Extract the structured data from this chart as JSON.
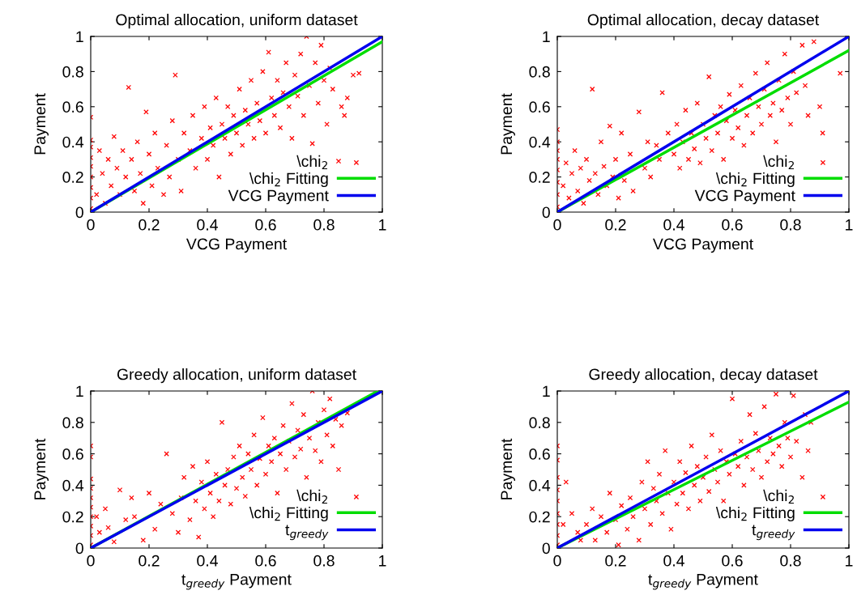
{
  "chart_data": [
    {
      "type": "scatter",
      "title": "Optimal allocation, uniform dataset",
      "xlabel": "VCG Payment",
      "ylabel": "Payment",
      "xlim": [
        0,
        1
      ],
      "ylim": [
        0,
        1
      ],
      "xticks": [
        0,
        0.2,
        0.4,
        0.6,
        0.8,
        1
      ],
      "yticks": [
        0,
        0.2,
        0.4,
        0.6,
        0.8,
        1
      ],
      "grid": false,
      "legend": "bottom right",
      "series": [
        {
          "type": "scatter",
          "name": "\\chi$_{2}$",
          "color": "#ff0000",
          "marker": "cross",
          "x": [
            0,
            0,
            0,
            0,
            0,
            0,
            0,
            0,
            0,
            0.02,
            0.03,
            0.04,
            0.05,
            0.06,
            0.07,
            0.08,
            0.09,
            0.1,
            0.11,
            0.12,
            0.13,
            0.14,
            0.15,
            0.16,
            0.17,
            0.18,
            0.19,
            0.2,
            0.21,
            0.22,
            0.23,
            0.25,
            0.26,
            0.27,
            0.28,
            0.29,
            0.3,
            0.31,
            0.32,
            0.34,
            0.35,
            0.36,
            0.38,
            0.39,
            0.4,
            0.41,
            0.42,
            0.43,
            0.44,
            0.45,
            0.46,
            0.47,
            0.48,
            0.49,
            0.5,
            0.51,
            0.52,
            0.53,
            0.54,
            0.55,
            0.56,
            0.57,
            0.58,
            0.59,
            0.6,
            0.61,
            0.62,
            0.63,
            0.64,
            0.65,
            0.66,
            0.67,
            0.68,
            0.69,
            0.7,
            0.71,
            0.72,
            0.73,
            0.74,
            0.75,
            0.76,
            0.77,
            0.78,
            0.79,
            0.8,
            0.81,
            0.82,
            0.83,
            0.85,
            0.86,
            0.87,
            0.88,
            0.9,
            0.92
          ],
          "values": [
            0.02,
            0.08,
            0.14,
            0.2,
            0.26,
            0.31,
            0.37,
            0.41,
            0.54,
            0.1,
            0.35,
            0.22,
            0.05,
            0.3,
            0.15,
            0.43,
            0.25,
            0.1,
            0.35,
            0.2,
            0.71,
            0.3,
            0.12,
            0.4,
            0.22,
            0.05,
            0.57,
            0.33,
            0.15,
            0.45,
            0.25,
            0.1,
            0.38,
            0.2,
            0.52,
            0.78,
            0.3,
            0.12,
            0.45,
            0.35,
            0.55,
            0.25,
            0.42,
            0.6,
            0.3,
            0.48,
            0.38,
            0.65,
            0.2,
            0.5,
            0.42,
            0.6,
            0.33,
            0.55,
            0.45,
            0.7,
            0.38,
            0.58,
            0.5,
            0.75,
            0.42,
            0.62,
            0.52,
            0.8,
            0.45,
            0.91,
            0.65,
            0.55,
            0.75,
            0.48,
            0.68,
            0.85,
            0.6,
            0.42,
            0.78,
            0.66,
            0.9,
            0.55,
            1.0,
            0.72,
            0.39,
            0.85,
            0.62,
            0.95,
            0.75,
            0.5,
            0.82,
            0.7,
            0.29,
            0.6,
            0.55,
            0.65,
            0.78,
            0.79
          ]
        },
        {
          "type": "line",
          "name": "\\chi$_{2}$ Fitting",
          "color": "#00dd00",
          "x": [
            0,
            1
          ],
          "values": [
            0,
            0.97
          ]
        },
        {
          "type": "line",
          "name": "VCG Payment",
          "color": "#0000ee",
          "x": [
            0,
            1
          ],
          "values": [
            0,
            1
          ]
        }
      ]
    },
    {
      "type": "scatter",
      "title": "Optimal allocation, decay dataset",
      "xlabel": "VCG Payment",
      "ylabel": "Payment",
      "xlim": [
        0,
        1
      ],
      "ylim": [
        0,
        1
      ],
      "xticks": [
        0,
        0.2,
        0.4,
        0.6,
        0.8,
        1
      ],
      "yticks": [
        0,
        0.2,
        0.4,
        0.6,
        0.8,
        1
      ],
      "grid": false,
      "legend": "bottom right",
      "series": [
        {
          "type": "scatter",
          "name": "\\chi$_{2}$",
          "color": "#ff0000",
          "marker": "cross",
          "x": [
            0,
            0,
            0,
            0,
            0,
            0,
            0,
            0,
            0.02,
            0.03,
            0.04,
            0.05,
            0.06,
            0.07,
            0.08,
            0.09,
            0.1,
            0.11,
            0.12,
            0.13,
            0.14,
            0.15,
            0.16,
            0.17,
            0.18,
            0.19,
            0.2,
            0.21,
            0.22,
            0.23,
            0.25,
            0.26,
            0.28,
            0.3,
            0.31,
            0.32,
            0.34,
            0.35,
            0.36,
            0.38,
            0.4,
            0.41,
            0.42,
            0.43,
            0.44,
            0.45,
            0.46,
            0.47,
            0.48,
            0.49,
            0.5,
            0.51,
            0.52,
            0.53,
            0.54,
            0.55,
            0.56,
            0.57,
            0.58,
            0.59,
            0.6,
            0.61,
            0.62,
            0.63,
            0.64,
            0.65,
            0.66,
            0.67,
            0.68,
            0.69,
            0.7,
            0.71,
            0.72,
            0.73,
            0.74,
            0.75,
            0.76,
            0.77,
            0.78,
            0.79,
            0.8,
            0.81,
            0.82,
            0.84,
            0.85,
            0.86,
            0.88,
            0.9,
            0.91,
            0.97
          ],
          "values": [
            0.03,
            0.1,
            0.17,
            0.24,
            0.3,
            0.35,
            0.4,
            0.47,
            0.15,
            0.28,
            0.08,
            0.22,
            0.35,
            0.12,
            0.25,
            0.05,
            0.3,
            0.18,
            0.7,
            0.22,
            0.1,
            0.4,
            0.26,
            0.15,
            0.49,
            0.2,
            0.3,
            0.08,
            0.45,
            0.18,
            0.33,
            0.12,
            0.57,
            0.25,
            0.4,
            0.2,
            0.38,
            0.3,
            0.68,
            0.45,
            0.33,
            0.5,
            0.25,
            0.4,
            0.58,
            0.3,
            0.45,
            0.36,
            0.62,
            0.28,
            0.5,
            0.42,
            0.77,
            0.35,
            0.55,
            0.45,
            0.6,
            0.3,
            0.52,
            0.67,
            0.42,
            0.58,
            0.48,
            0.72,
            0.38,
            0.55,
            0.65,
            0.45,
            0.79,
            0.6,
            0.5,
            0.7,
            0.85,
            0.55,
            0.62,
            0.4,
            0.75,
            0.58,
            0.9,
            0.65,
            0.5,
            0.8,
            0.68,
            0.95,
            0.72,
            0.55,
            0.97,
            0.6,
            0.45,
            0.79
          ]
        },
        {
          "type": "line",
          "name": "\\chi$_{2}$ Fitting",
          "color": "#00dd00",
          "x": [
            0,
            1
          ],
          "values": [
            0,
            0.92
          ]
        },
        {
          "type": "line",
          "name": "VCG Payment",
          "color": "#0000ee",
          "x": [
            0,
            1
          ],
          "values": [
            0,
            1
          ]
        }
      ]
    },
    {
      "type": "scatter",
      "title": "Greedy allocation, uniform dataset",
      "xlabel": "t$_{greedy}$ Payment",
      "ylabel": "Payment",
      "xlim": [
        0,
        1
      ],
      "ylim": [
        0,
        1
      ],
      "xticks": [
        0,
        0.2,
        0.4,
        0.6,
        0.8,
        1
      ],
      "yticks": [
        0,
        0.2,
        0.4,
        0.6,
        0.8,
        1
      ],
      "grid": false,
      "legend": "bottom right",
      "series": [
        {
          "type": "scatter",
          "name": "\\chi$_{2}$",
          "color": "#ff0000",
          "marker": "cross",
          "x": [
            0,
            0,
            0,
            0,
            0,
            0,
            0,
            0,
            0,
            0,
            0.02,
            0.03,
            0.05,
            0.06,
            0.08,
            0.1,
            0.12,
            0.14,
            0.15,
            0.18,
            0.2,
            0.22,
            0.24,
            0.26,
            0.28,
            0.3,
            0.31,
            0.32,
            0.34,
            0.35,
            0.36,
            0.37,
            0.38,
            0.39,
            0.4,
            0.41,
            0.42,
            0.43,
            0.44,
            0.45,
            0.46,
            0.47,
            0.48,
            0.49,
            0.5,
            0.51,
            0.52,
            0.53,
            0.54,
            0.55,
            0.56,
            0.57,
            0.58,
            0.59,
            0.6,
            0.61,
            0.62,
            0.63,
            0.64,
            0.65,
            0.66,
            0.67,
            0.68,
            0.69,
            0.7,
            0.71,
            0.72,
            0.73,
            0.74,
            0.75,
            0.76,
            0.77,
            0.78,
            0.79,
            0.8,
            0.81,
            0.82,
            0.83,
            0.84,
            0.85,
            0.86,
            0.88
          ],
          "values": [
            0.02,
            0.08,
            0.14,
            0.2,
            0.26,
            0.32,
            0.38,
            0.44,
            0.58,
            0.65,
            0.2,
            0.1,
            0.25,
            0.13,
            0.04,
            0.37,
            0.18,
            0.32,
            0.2,
            0.05,
            0.35,
            0.12,
            0.28,
            0.6,
            0.22,
            0.1,
            0.32,
            0.45,
            0.18,
            0.52,
            0.3,
            0.07,
            0.42,
            0.25,
            0.55,
            0.35,
            0.2,
            0.47,
            0.3,
            0.8,
            0.4,
            0.5,
            0.28,
            0.58,
            0.38,
            0.65,
            0.45,
            0.33,
            0.6,
            0.5,
            0.72,
            0.4,
            0.57,
            0.83,
            0.47,
            0.65,
            0.55,
            0.7,
            0.35,
            0.6,
            0.78,
            0.5,
            0.68,
            0.92,
            0.58,
            0.75,
            0.63,
            0.85,
            0.45,
            0.7,
            1.0,
            0.62,
            0.8,
            0.55,
            0.88,
            0.72,
            0.95,
            0.65,
            0.82,
            0.5,
            0.78,
            0.86
          ]
        },
        {
          "type": "line",
          "name": "\\chi$_{2}$ Fitting",
          "color": "#00dd00",
          "x": [
            0,
            0.985
          ],
          "values": [
            0,
            1
          ]
        },
        {
          "type": "line",
          "name": "t$_{greedy}$",
          "color": "#0000ee",
          "x": [
            0,
            1
          ],
          "values": [
            0,
            1
          ]
        }
      ]
    },
    {
      "type": "scatter",
      "title": "Greedy allocation, decay dataset",
      "xlabel": "t$_{greedy}$ Payment",
      "ylabel": "Payment",
      "xlim": [
        0,
        1
      ],
      "ylim": [
        0,
        1
      ],
      "xticks": [
        0,
        0.2,
        0.4,
        0.6,
        0.8,
        1
      ],
      "yticks": [
        0,
        0.2,
        0.4,
        0.6,
        0.8,
        1
      ],
      "grid": false,
      "legend": "bottom right",
      "series": [
        {
          "type": "scatter",
          "name": "\\chi$_{2}$",
          "color": "#ff0000",
          "marker": "cross",
          "x": [
            0,
            0,
            0,
            0,
            0,
            0,
            0,
            0,
            0,
            0.02,
            0.03,
            0.05,
            0.07,
            0.08,
            0.1,
            0.12,
            0.13,
            0.15,
            0.17,
            0.18,
            0.2,
            0.21,
            0.22,
            0.24,
            0.25,
            0.26,
            0.28,
            0.29,
            0.3,
            0.31,
            0.32,
            0.33,
            0.34,
            0.35,
            0.36,
            0.37,
            0.38,
            0.39,
            0.4,
            0.41,
            0.42,
            0.43,
            0.44,
            0.45,
            0.46,
            0.47,
            0.48,
            0.49,
            0.5,
            0.51,
            0.52,
            0.53,
            0.54,
            0.55,
            0.56,
            0.57,
            0.58,
            0.59,
            0.6,
            0.61,
            0.62,
            0.63,
            0.64,
            0.65,
            0.66,
            0.67,
            0.68,
            0.69,
            0.7,
            0.71,
            0.72,
            0.73,
            0.74,
            0.75,
            0.76,
            0.77,
            0.78,
            0.79,
            0.8,
            0.81,
            0.82,
            0.84,
            0.85,
            0.86,
            0.87
          ],
          "values": [
            0.02,
            0.08,
            0.15,
            0.22,
            0.3,
            0.37,
            0.45,
            0.56,
            0.65,
            0.15,
            0.42,
            0.22,
            0.1,
            0.05,
            0.15,
            0.25,
            0.05,
            0.2,
            0.1,
            0.35,
            0.18,
            0.02,
            0.27,
            0.12,
            0.32,
            0.2,
            0.05,
            0.42,
            0.25,
            0.55,
            0.15,
            0.38,
            0.3,
            0.47,
            0.22,
            0.62,
            0.35,
            0.12,
            0.42,
            0.28,
            0.55,
            0.35,
            0.48,
            0.25,
            0.65,
            0.4,
            0.52,
            0.3,
            0.45,
            0.58,
            0.36,
            0.72,
            0.5,
            0.42,
            0.62,
            0.3,
            0.55,
            0.47,
            0.95,
            0.6,
            0.52,
            0.68,
            0.4,
            0.58,
            0.85,
            0.5,
            0.73,
            0.62,
            0.45,
            0.9,
            0.55,
            0.7,
            0.6,
            0.98,
            0.65,
            0.52,
            0.8,
            0.7,
            0.58,
            0.97,
            0.68,
            0.45,
            0.85,
            0.62,
            0.8
          ]
        },
        {
          "type": "line",
          "name": "\\chi$_{2}$ Fitting",
          "color": "#00dd00",
          "x": [
            0,
            1
          ],
          "values": [
            0,
            0.93
          ]
        },
        {
          "type": "line",
          "name": "t$_{greedy}$",
          "color": "#0000ee",
          "x": [
            0,
            1
          ],
          "values": [
            0,
            1
          ]
        }
      ]
    }
  ]
}
